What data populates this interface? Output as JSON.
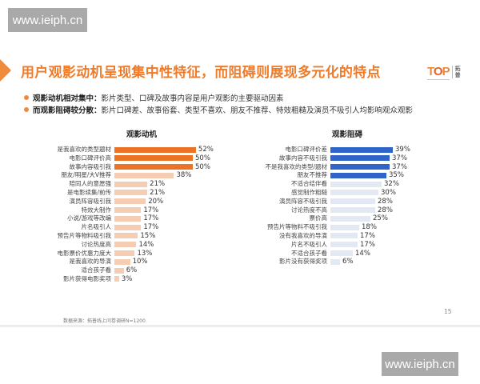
{
  "watermark": {
    "top": "www.ieiph.cn",
    "bottom": "www.ieiph.cn"
  },
  "slide": {
    "title": "用户观影动机呈现集中性特征，而阻碍则展现多元化的特点",
    "logo": {
      "text_t": "T",
      "text_o": "O",
      "text_p": "P",
      "cn_line1": "拓",
      "cn_line2": "普"
    },
    "bullets": [
      {
        "label": "观影动机相对集中：",
        "text": "影片类型、口碑及故事内容是用户观影的主要驱动因素"
      },
      {
        "label": "而观影阻碍较分散：",
        "text": "影片口碑差、故事俗套、类型不喜欢、朋友不推荐、特效粗糙及演员不吸引人均影响观众观影"
      }
    ],
    "source": "数据来源：拓普线上问卷调研N=1200",
    "page_number": "15"
  },
  "colors": {
    "title_orange": "#ee7b2a",
    "motive_highlight": "#ec7224",
    "motive_normal": "#f5cdb3",
    "barrier_highlight": "#2f65c8",
    "barrier_normal": "#e3e9f3"
  },
  "chart_data": [
    {
      "type": "bar",
      "orientation": "horizontal",
      "title": "观影动机",
      "categories": [
        "是我喜欢的类型题材",
        "电影口碑评价高",
        "故事内容吸引我",
        "朋友/明星/大V推荐",
        "陪同人的意愿强",
        "是电影续集/前传",
        "演员阵容吸引我",
        "特效大制作",
        "小说/游戏等改编",
        "片名吸引人",
        "预告片等物料吸引我",
        "讨论热度高",
        "电影票价优惠力度大",
        "是我喜欢的导演",
        "适合孩子看",
        "影片获得电影奖项"
      ],
      "values": [
        52,
        50,
        50,
        38,
        21,
        21,
        20,
        17,
        17,
        17,
        15,
        14,
        13,
        10,
        6,
        3
      ],
      "labels": [
        "52%",
        "50%",
        "50%",
        "38%",
        "21%",
        "21%",
        "20%",
        "17%",
        "17%",
        "17%",
        "15%",
        "14%",
        "13%",
        "10%",
        "6%",
        "3%"
      ],
      "highlighted_count": 3,
      "unit": "%",
      "xlabel": "",
      "ylabel": ""
    },
    {
      "type": "bar",
      "orientation": "horizontal",
      "title": "观影阻碍",
      "categories": [
        "电影口碑评价差",
        "故事内容不吸引我",
        "不是我喜欢的类型/题材",
        "朋友不推荐",
        "不适合结伴看",
        "感觉制作粗糙",
        "演员阵容不吸引我",
        "讨论热度不高",
        "票价高",
        "预告片等物料不吸引我",
        "没有我喜欢的导演",
        "片名不吸引人",
        "不适合孩子看",
        "影片没有获得奖项"
      ],
      "values": [
        39,
        37,
        37,
        35,
        32,
        30,
        28,
        28,
        25,
        18,
        17,
        17,
        14,
        6
      ],
      "labels": [
        "39%",
        "37%",
        "37%",
        "35%",
        "32%",
        "30%",
        "28%",
        "28%",
        "25%",
        "18%",
        "17%",
        "17%",
        "14%",
        "6%"
      ],
      "highlighted_count": 4,
      "unit": "%",
      "xlabel": "",
      "ylabel": ""
    }
  ]
}
